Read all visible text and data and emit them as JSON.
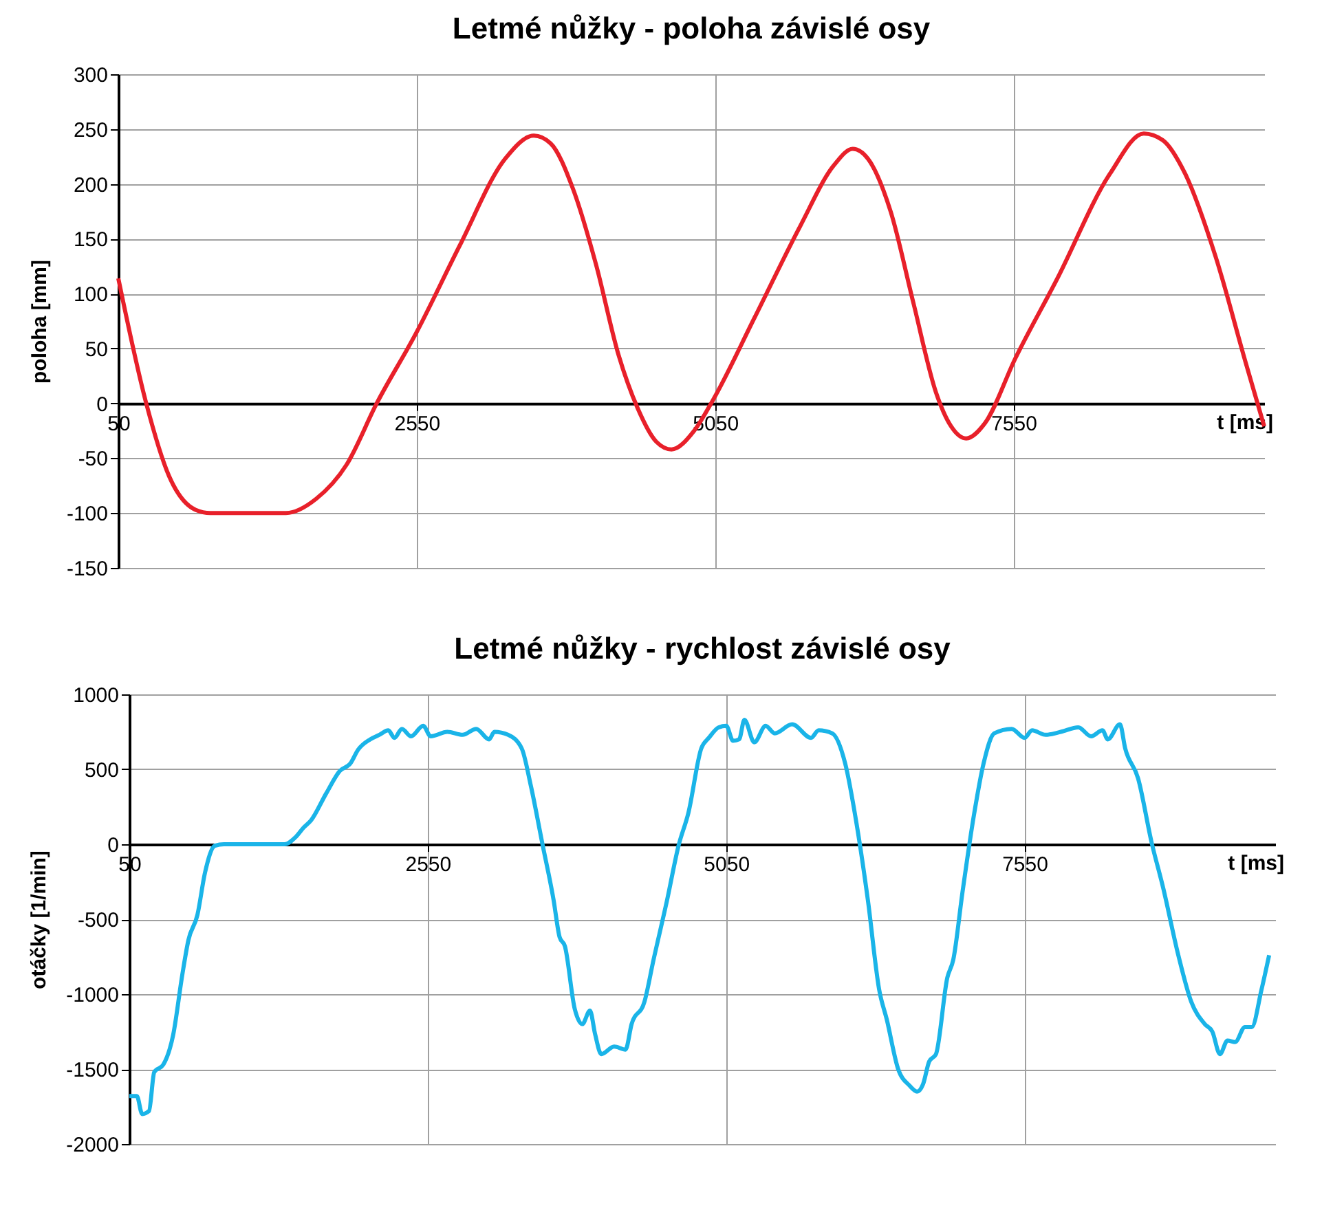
{
  "chart_data": [
    {
      "type": "line",
      "title": "Letmé nůžky - poloha závislé osy",
      "xlabel": "t [ms]",
      "ylabel": "poloha [mm]",
      "x": [
        50,
        284,
        474,
        696,
        822,
        1455,
        1708,
        1962,
        2215,
        2550,
        2911,
        3291,
        3531,
        3671,
        3861,
        4051,
        4241,
        4399,
        4557,
        4684,
        4874,
        5032,
        5380,
        5760,
        6045,
        6203,
        6330,
        6520,
        6710,
        6900,
        7027,
        7153,
        7311,
        7565,
        7913,
        8356,
        8641,
        8799,
        8989,
        9242,
        9495,
        9650
      ],
      "series": [
        {
          "color": "#e8202a",
          "values": [
            114,
            0,
            -66,
            -97,
            -100,
            -100,
            -87,
            -56,
            0,
            65,
            144,
            223,
            244,
            237,
            195,
            127,
            44,
            -4,
            -35,
            -42,
            -25,
            3,
            78,
            161,
            217,
            232,
            223,
            175,
            92,
            10,
            -21,
            -32,
            -18,
            41,
            113,
            209,
            246,
            240,
            209,
            134,
            37,
            -21
          ]
        }
      ],
      "xlim": [
        50,
        9650
      ],
      "xticks": [
        50,
        2550,
        5050,
        7550
      ],
      "ylim": [
        -150,
        300
      ],
      "yticks": [
        -150,
        -100,
        -50,
        0,
        50,
        100,
        150,
        200,
        250,
        300
      ],
      "grid": true
    },
    {
      "type": "line",
      "title": "Letmé nůžky -  rychlost závislé osy",
      "xlabel": "t [ms]",
      "ylabel": "otáčky [1/min]",
      "x": [
        50,
        113,
        158,
        215,
        259,
        335,
        418,
        494,
        545,
        621,
        684,
        767,
        843,
        1128,
        1350,
        1446,
        1509,
        1573,
        1700,
        1814,
        1903,
        1966,
        2068,
        2144,
        2220,
        2271,
        2334,
        2410,
        2512,
        2575,
        2715,
        2842,
        2956,
        3064,
        3109,
        3223,
        3337,
        3414,
        3509,
        3604,
        3655,
        3699,
        3782,
        3845,
        3909,
        3953,
        4004,
        4112,
        4207,
        4258,
        4366,
        4442,
        4556,
        4651,
        4734,
        4842,
        4905,
        4988,
        5051,
        5108,
        5159,
        5203,
        5286,
        5381,
        5457,
        5603,
        5761,
        5825,
        5939,
        6047,
        6142,
        6237,
        6332,
        6396,
        6491,
        6586,
        6649,
        6700,
        6751,
        6808,
        6903,
        6953,
        7030,
        7125,
        7207,
        7296,
        7442,
        7550,
        7613,
        7727,
        7854,
        8000,
        8108,
        8203,
        8247,
        8349,
        8393,
        8501,
        8615,
        8711,
        8838,
        8946,
        9060,
        9123,
        9187,
        9250,
        9314,
        9396,
        9453,
        9535,
        9599
      ],
      "series": [
        {
          "color": "#1ab4e8",
          "values": [
            -1680,
            -1680,
            -1800,
            -1780,
            -1520,
            -1470,
            -1270,
            -870,
            -640,
            -470,
            -190,
            -10,
            0,
            0,
            0,
            50,
            110,
            160,
            340,
            490,
            540,
            630,
            700,
            730,
            760,
            710,
            770,
            720,
            790,
            720,
            750,
            730,
            770,
            700,
            750,
            730,
            640,
            390,
            10,
            -370,
            -620,
            -680,
            -1100,
            -1200,
            -1110,
            -1270,
            -1400,
            -1350,
            -1370,
            -1200,
            -1050,
            -770,
            -370,
            -10,
            210,
            640,
            710,
            780,
            790,
            690,
            700,
            830,
            680,
            790,
            740,
            800,
            710,
            760,
            740,
            540,
            140,
            -370,
            -970,
            -1170,
            -1500,
            -1610,
            -1650,
            -1600,
            -1450,
            -1400,
            -890,
            -770,
            -320,
            190,
            540,
            740,
            770,
            710,
            760,
            730,
            750,
            780,
            720,
            760,
            700,
            800,
            640,
            440,
            10,
            -290,
            -740,
            -1050,
            -1200,
            -1250,
            -1400,
            -1310,
            -1320,
            -1220,
            -1220,
            -970,
            -740
          ]
        }
      ],
      "xlim": [
        50,
        9650
      ],
      "xticks": [
        50,
        2550,
        5050,
        7550
      ],
      "ylim": [
        -2000,
        1000
      ],
      "yticks": [
        -2000,
        -1500,
        -1000,
        -500,
        0,
        500,
        1000
      ],
      "grid": true
    }
  ]
}
